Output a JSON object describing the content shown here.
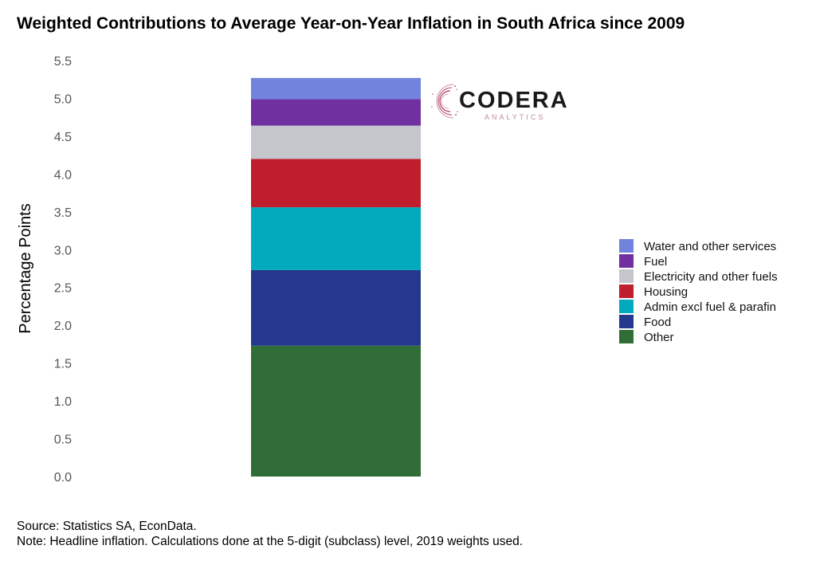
{
  "title": "Weighted Contributions to Average Year-on-Year Inflation in South Africa since 2009",
  "footer": {
    "source": "Source: Statistics SA, EconData.",
    "note": "Note: Headline inflation. Calculations done at the 5-digit (subclass) level, 2019 weights used."
  },
  "logo": {
    "word": "CODERA",
    "sub": "ANALYTICS"
  },
  "chart_data": {
    "type": "bar",
    "stacked": true,
    "categories": [
      ""
    ],
    "ylabel": "Percentage Points",
    "xlabel": "",
    "ylim": [
      0,
      5.5
    ],
    "yticks": [
      "0.0",
      "0.5",
      "1.0",
      "1.5",
      "2.0",
      "2.5",
      "3.0",
      "3.5",
      "4.0",
      "4.5",
      "5.0",
      "5.5"
    ],
    "grid": false,
    "legend_position": "right",
    "series": [
      {
        "name": "Other",
        "values": [
          1.73
        ],
        "color": "#316e37"
      },
      {
        "name": "Food",
        "values": [
          1.0
        ],
        "color": "#24398e"
      },
      {
        "name": "Admin excl fuel & parafin",
        "values": [
          0.83
        ],
        "color": "#02aabe"
      },
      {
        "name": "Housing",
        "values": [
          0.64
        ],
        "color": "#bf1e2d"
      },
      {
        "name": "Electricity and other fuels",
        "values": [
          0.44
        ],
        "color": "#c4c6cc"
      },
      {
        "name": "Fuel",
        "values": [
          0.35
        ],
        "color": "#7030a0"
      },
      {
        "name": "Water and other services",
        "values": [
          0.28
        ],
        "color": "#7283de"
      }
    ]
  }
}
